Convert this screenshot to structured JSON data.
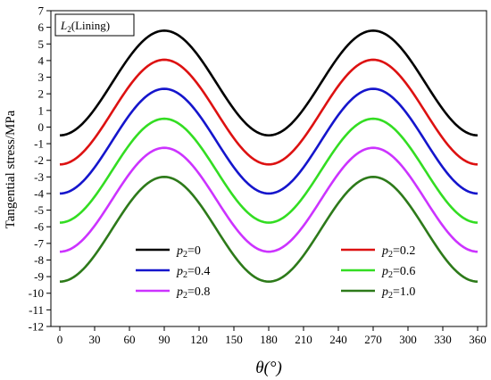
{
  "chart_data": {
    "type": "line",
    "title": "",
    "xlabel": "θ(°)",
    "ylabel": "Tangential stress/MPa",
    "xlim": [
      0,
      360
    ],
    "ylim": [
      -12,
      7
    ],
    "xticks": [
      0,
      30,
      60,
      90,
      120,
      150,
      180,
      210,
      240,
      270,
      300,
      330,
      360
    ],
    "yticks": [
      7,
      6,
      5,
      4,
      3,
      2,
      1,
      0,
      -1,
      -2,
      -3,
      -4,
      -5,
      -6,
      -7,
      -8,
      -9,
      -10,
      -11,
      -12
    ],
    "grid": false,
    "annotation": {
      "italic": "L",
      "sub": "2",
      "rest": "(Lining)"
    },
    "legend_position": "bottom-inside, two columns",
    "series": [
      {
        "name": "p2=0",
        "label_var": "p",
        "label_sub": "2",
        "label_val": "=0",
        "color": "#000000",
        "min": -0.5,
        "max": 5.8
      },
      {
        "name": "p2=0.2",
        "label_var": "p",
        "label_sub": "2",
        "label_val": "=0.2",
        "color": "#dd1111",
        "min": -2.25,
        "max": 4.05
      },
      {
        "name": "p2=0.4",
        "label_var": "p",
        "label_sub": "2",
        "label_val": "=0.4",
        "color": "#1515cc",
        "min": -4.0,
        "max": 2.3
      },
      {
        "name": "p2=0.6",
        "label_var": "p",
        "label_sub": "2",
        "label_val": "=0.6",
        "color": "#33dd22",
        "min": -5.75,
        "max": 0.5
      },
      {
        "name": "p2=0.8",
        "label_var": "p",
        "label_sub": "2",
        "label_val": "=0.8",
        "color": "#cc33ff",
        "min": -7.5,
        "max": -1.25
      },
      {
        "name": "p2=1.0",
        "label_var": "p",
        "label_sub": "2",
        "label_val": "=1.0",
        "color": "#2d7a1a",
        "min": -9.3,
        "max": -3.0
      }
    ]
  }
}
